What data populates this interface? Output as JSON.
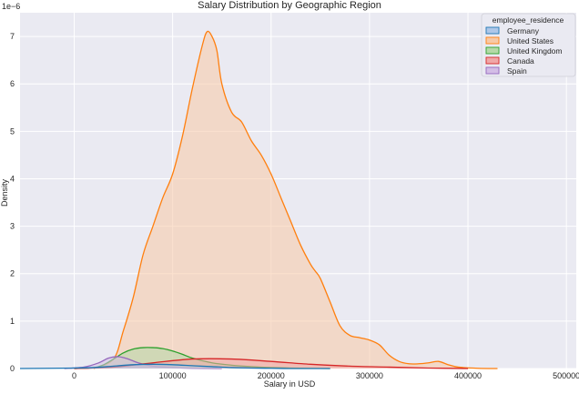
{
  "chart_data": {
    "type": "area",
    "title": "Salary Distribution by Geographic Region",
    "xlabel": "Salary in USD",
    "ylabel": "Density",
    "y_offset_label": "1e−6",
    "y_scale_factor": 1e-06,
    "xlim": [
      -55000,
      510000
    ],
    "ylim": [
      0,
      7.5
    ],
    "x_ticks": [
      0,
      100000,
      200000,
      300000,
      400000,
      500000
    ],
    "x_tick_labels": [
      "0",
      "100000",
      "200000",
      "300000",
      "400000",
      "500000"
    ],
    "y_ticks": [
      0,
      1,
      2,
      3,
      4,
      5,
      6,
      7
    ],
    "y_tick_labels": [
      "0",
      "1",
      "2",
      "3",
      "4",
      "5",
      "6",
      "7"
    ],
    "grid": true,
    "legend": {
      "title": "employee_residence",
      "placement": "top-right"
    },
    "series": [
      {
        "name": "Germany",
        "line_color": "#1f77b4",
        "fill_color": "#aec7e8",
        "x": [
          -55000,
          0,
          20000,
          40000,
          60000,
          80000,
          100000,
          120000,
          140000,
          160000,
          180000,
          200000,
          220000,
          260000
        ],
        "y": [
          0.0,
          0.01,
          0.02,
          0.05,
          0.08,
          0.09,
          0.08,
          0.06,
          0.04,
          0.02,
          0.01,
          0.005,
          0.0,
          0.0
        ]
      },
      {
        "name": "United States",
        "line_color": "#ff7f0e",
        "fill_color": "#f7c9a6",
        "x": [
          20000,
          40000,
          50000,
          60000,
          70000,
          80000,
          90000,
          100000,
          110000,
          120000,
          130000,
          135000,
          140000,
          145000,
          150000,
          160000,
          170000,
          180000,
          190000,
          200000,
          210000,
          220000,
          230000,
          240000,
          245000,
          250000,
          260000,
          270000,
          280000,
          290000,
          300000,
          310000,
          320000,
          330000,
          340000,
          350000,
          360000,
          370000,
          380000,
          390000,
          410000,
          430000
        ],
        "y": [
          0.0,
          0.2,
          0.8,
          1.5,
          2.4,
          3.0,
          3.6,
          4.1,
          4.9,
          5.9,
          6.8,
          7.1,
          7.0,
          6.7,
          6.0,
          5.4,
          5.2,
          4.8,
          4.5,
          4.1,
          3.6,
          3.1,
          2.6,
          2.2,
          2.05,
          1.9,
          1.4,
          0.9,
          0.7,
          0.65,
          0.6,
          0.5,
          0.28,
          0.15,
          0.1,
          0.1,
          0.12,
          0.15,
          0.08,
          0.03,
          0.005,
          0.0
        ]
      },
      {
        "name": "United Kingdom",
        "line_color": "#2ca02c",
        "fill_color": "#b5d9a8",
        "x": [
          0,
          20000,
          30000,
          40000,
          50000,
          60000,
          70000,
          80000,
          90000,
          100000,
          110000,
          120000,
          140000,
          160000,
          180000,
          200000,
          220000,
          260000
        ],
        "y": [
          0.0,
          0.02,
          0.08,
          0.2,
          0.33,
          0.41,
          0.44,
          0.44,
          0.42,
          0.37,
          0.3,
          0.22,
          0.12,
          0.07,
          0.04,
          0.02,
          0.01,
          0.0
        ]
      },
      {
        "name": "Canada",
        "line_color": "#d62728",
        "fill_color": "#f0a8a8",
        "x": [
          0,
          40000,
          80000,
          120000,
          160000,
          200000,
          240000,
          280000,
          320000,
          360000,
          400000
        ],
        "y": [
          0.0,
          0.03,
          0.12,
          0.2,
          0.2,
          0.15,
          0.09,
          0.05,
          0.03,
          0.01,
          0.0
        ]
      },
      {
        "name": "Spain",
        "line_color": "#9467bd",
        "fill_color": "#d3bde6",
        "x": [
          -10000,
          10000,
          25000,
          35000,
          45000,
          55000,
          65000,
          80000,
          100000,
          120000,
          150000
        ],
        "y": [
          0.0,
          0.03,
          0.12,
          0.22,
          0.25,
          0.2,
          0.12,
          0.05,
          0.02,
          0.005,
          0.0
        ]
      }
    ]
  }
}
